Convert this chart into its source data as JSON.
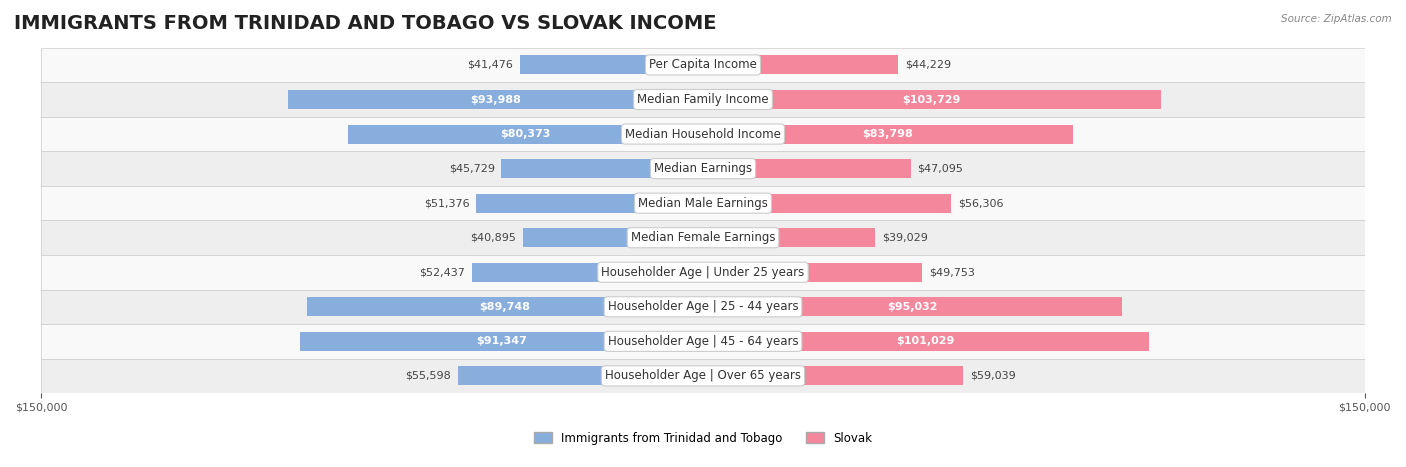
{
  "title": "IMMIGRANTS FROM TRINIDAD AND TOBAGO VS SLOVAK INCOME",
  "source": "Source: ZipAtlas.com",
  "categories": [
    "Per Capita Income",
    "Median Family Income",
    "Median Household Income",
    "Median Earnings",
    "Median Male Earnings",
    "Median Female Earnings",
    "Householder Age | Under 25 years",
    "Householder Age | 25 - 44 years",
    "Householder Age | 45 - 64 years",
    "Householder Age | Over 65 years"
  ],
  "left_values": [
    41476,
    93988,
    80373,
    45729,
    51376,
    40895,
    52437,
    89748,
    91347,
    55598
  ],
  "right_values": [
    44229,
    103729,
    83798,
    47095,
    56306,
    39029,
    49753,
    95032,
    101029,
    59039
  ],
  "left_color": "#88AEDD",
  "right_color": "#F4879C",
  "left_label_color_dark": "#555555",
  "right_label_color_dark": "#555555",
  "left_color_dark": "#5577BB",
  "right_color_dark": "#E05070",
  "xlim": 150000,
  "bar_height": 0.55,
  "background_color": "#f5f5f5",
  "row_bg_light": "#f9f9f9",
  "row_bg_dark": "#eeeeee",
  "legend_left": "Immigrants from Trinidad and Tobago",
  "legend_right": "Slovak",
  "title_fontsize": 14,
  "label_fontsize": 8.5,
  "value_fontsize": 8,
  "axis_fontsize": 8
}
